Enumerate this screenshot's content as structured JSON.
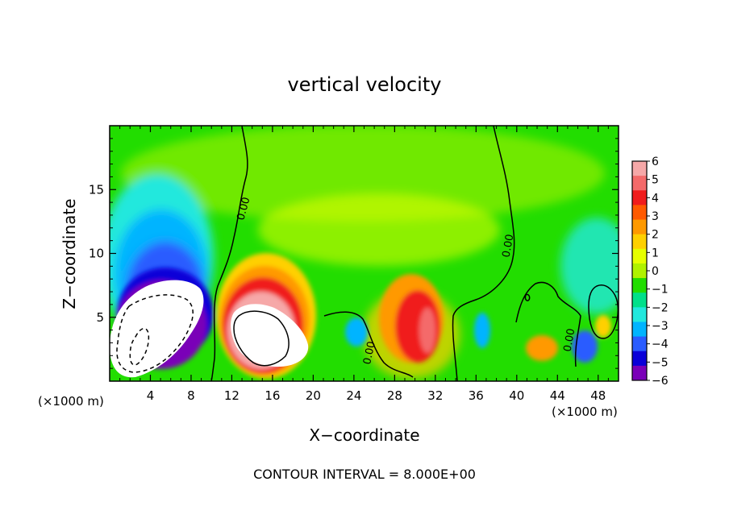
{
  "chart_data": {
    "type": "heatmap",
    "title": "vertical velocity",
    "xlabel": "X−coordinate",
    "ylabel": "Z−coordinate",
    "x_unit_label": "(×1000 m)",
    "z_unit_label": "(×1000 m)",
    "footer": "CONTOUR INTERVAL = 8.000E+00",
    "xlim": [
      0,
      50
    ],
    "ylim": [
      0,
      20
    ],
    "x_ticks": [
      4,
      8,
      12,
      16,
      20,
      24,
      28,
      32,
      36,
      40,
      44,
      48
    ],
    "x_tick_labels": [
      "4",
      "8",
      "12",
      "16",
      "20",
      "24",
      "28",
      "32",
      "36",
      "40",
      "44",
      "48"
    ],
    "y_ticks": [
      5,
      10,
      15
    ],
    "y_tick_labels": [
      "5",
      "10",
      "15"
    ],
    "colorbar": {
      "levels": [
        6,
        5,
        4,
        3,
        2,
        1,
        0,
        -1,
        -2,
        -3,
        -4,
        -5,
        -6
      ],
      "labels": [
        "6",
        "5",
        "4",
        "3",
        "2",
        "1",
        "0",
        "−1",
        "−2",
        "−3",
        "−4",
        "−5",
        "−6"
      ],
      "colors": [
        "#f6a8a8",
        "#f46a6a",
        "#f01c1c",
        "#ff5a00",
        "#ff9900",
        "#ffd000",
        "#e6ff00",
        "#b0f200",
        "#22dd00",
        "#00e08a",
        "#22e8dd",
        "#00b4ff",
        "#2a5cff",
        "#0a00d8",
        "#7a00b8"
      ]
    },
    "contour_labels": [
      "0.00",
      "0.00",
      "0.00",
      "0.00"
    ],
    "features": [
      {
        "name": "downdraft",
        "x": 5,
        "z": 4,
        "w": -14
      },
      {
        "name": "updraft core",
        "x": 15,
        "z": 3.8,
        "w": 14
      },
      {
        "name": "updraft",
        "x": 30,
        "z": 3.5,
        "w": 4.5
      },
      {
        "name": "updraft",
        "x": 43,
        "z": 2.5,
        "w": 3
      },
      {
        "name": "downdraft",
        "x": 36,
        "z": 4,
        "w": -3
      },
      {
        "name": "downdraft",
        "x": 46,
        "z": 2.5,
        "w": -4.5
      },
      {
        "name": "downdraft",
        "x": 26,
        "z": 4,
        "w": -3
      }
    ]
  }
}
